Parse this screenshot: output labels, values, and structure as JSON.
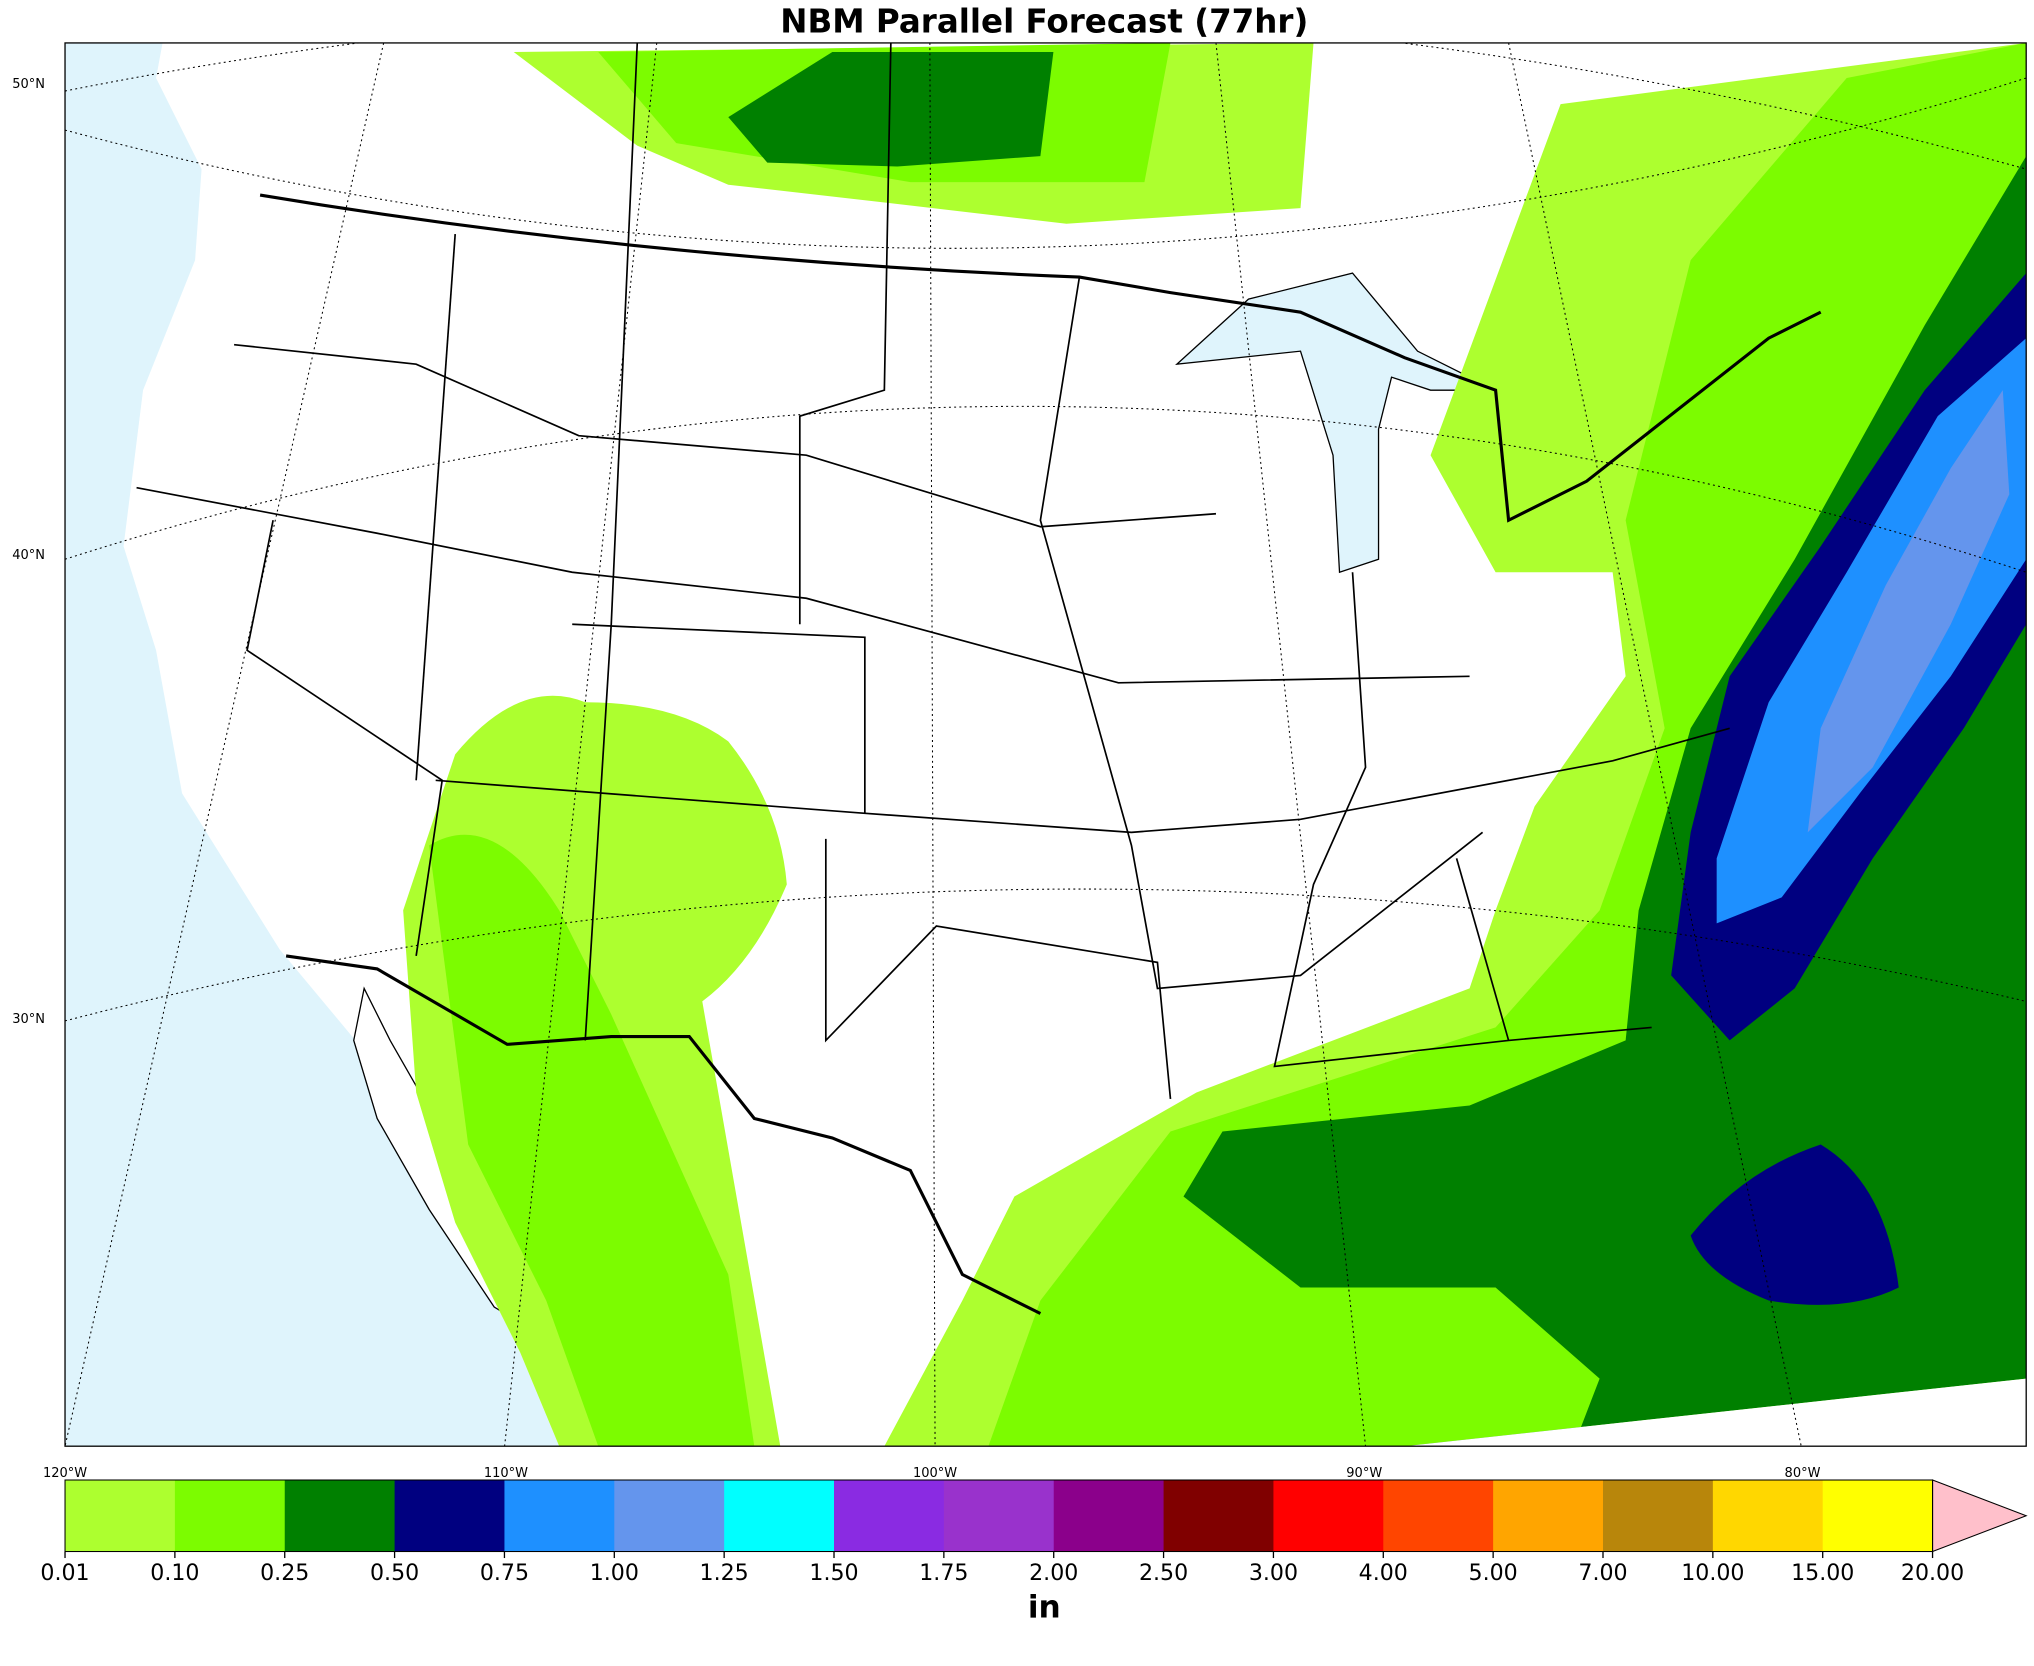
{
  "title": "NBM Parallel Forecast (77hr)",
  "map": {
    "lat_labels": [
      "50°N",
      "40°N",
      "30°N"
    ],
    "lon_labels": [
      "120°W",
      "110°W",
      "100°W",
      "90°W",
      "80°W"
    ]
  },
  "colorbar": {
    "levels": [
      0.01,
      {
        "value": 0.1,
        "label": "0.10"
      },
      0.25,
      {
        "value": 0.5,
        "label": "0.50"
      },
      0.75,
      {
        "value": 1,
        "label": "1.00"
      },
      1.25,
      {
        "value": 1.5,
        "label": "1.50"
      },
      1.75,
      {
        "value": 2,
        "label": "2.00"
      },
      {
        "value": 2.5,
        "label": "2.50"
      },
      {
        "value": 3,
        "label": "3.00"
      },
      {
        "value": 4,
        "label": "4.00"
      },
      {
        "value": 5,
        "label": "5.00"
      },
      {
        "value": 7,
        "label": "7.00"
      },
      {
        "value": 10,
        "label": "10.00"
      },
      {
        "value": 15,
        "label": "15.00"
      },
      {
        "value": 20,
        "label": "20.00"
      }
    ],
    "colors": [
      "#adff2f",
      "#7cfc00",
      "#008000",
      "#000080",
      "#1e90ff",
      "#6495ed",
      "#00ffff",
      "#8a2be2",
      "#9932cc",
      "#8b008b",
      "#800000",
      "#ff0000",
      "#ff4500",
      "#ffa500",
      "#b8860b",
      "#ffd700",
      "#ffff00"
    ],
    "over_color": "#ffc0cb",
    "unit": "in"
  }
}
